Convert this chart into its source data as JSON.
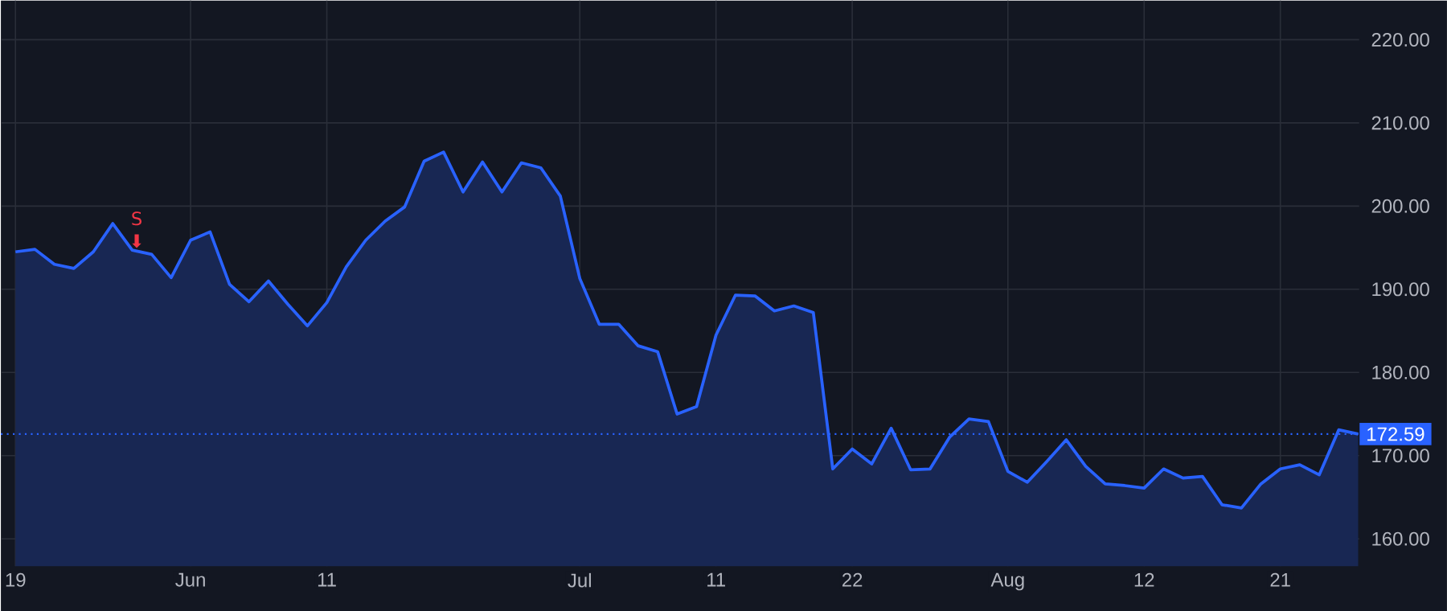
{
  "chart_data": {
    "type": "area",
    "categories": [
      "19",
      null,
      null,
      null,
      null,
      null,
      null,
      null,
      null,
      "Jun",
      null,
      null,
      null,
      null,
      null,
      null,
      "11",
      null,
      null,
      null,
      null,
      null,
      null,
      null,
      null,
      null,
      null,
      null,
      null,
      "Jul",
      null,
      null,
      null,
      null,
      null,
      null,
      "11",
      null,
      null,
      null,
      null,
      null,
      null,
      "22",
      null,
      null,
      null,
      null,
      null,
      null,
      null,
      "Aug",
      null,
      null,
      null,
      null,
      null,
      null,
      "12",
      null,
      null,
      null,
      null,
      null,
      null,
      "21",
      null,
      null,
      null,
      null
    ],
    "series": [
      {
        "color": "#2962ff",
        "values": [
          194.5,
          194.8,
          193.0,
          192.5,
          194.5,
          197.9,
          194.7,
          194.2,
          191.4,
          195.9,
          196.9,
          190.6,
          188.5,
          191.0,
          188.2,
          185.6,
          188.4,
          192.7,
          195.9,
          198.2,
          199.9,
          205.4,
          206.5,
          201.7,
          205.3,
          201.7,
          205.2,
          204.6,
          201.2,
          191.3,
          185.8,
          185.8,
          183.2,
          182.5,
          175.0,
          175.9,
          184.5,
          189.3,
          189.2,
          187.4,
          188.0,
          187.2,
          168.4,
          170.8,
          169.0,
          173.3,
          168.3,
          168.4,
          172.2,
          174.4,
          174.1,
          168.1,
          166.8,
          169.3,
          171.9,
          168.7,
          166.6,
          166.4,
          166.1,
          168.4,
          167.3,
          167.5,
          164.1,
          163.7,
          166.6,
          168.4,
          168.9,
          167.7,
          173.1,
          172.6
        ]
      }
    ],
    "ylim": [
      156.7,
      224.7
    ],
    "yticks": [
      {
        "value": 160,
        "label": "160.00"
      },
      {
        "value": 170,
        "label": "170.00"
      },
      {
        "value": 180,
        "label": "180.00"
      },
      {
        "value": 190,
        "label": "190.00"
      },
      {
        "value": 200,
        "label": "200.00"
      },
      {
        "value": 210,
        "label": "210.00"
      },
      {
        "value": 220,
        "label": "220.00"
      }
    ],
    "grid": true,
    "ref_lines": [
      {
        "axis": "y",
        "value": 172.59,
        "label": "172.59",
        "color": "#2962ff",
        "line_style": "dotted"
      }
    ],
    "annotations": [
      "S",
      "⬇"
    ]
  }
}
